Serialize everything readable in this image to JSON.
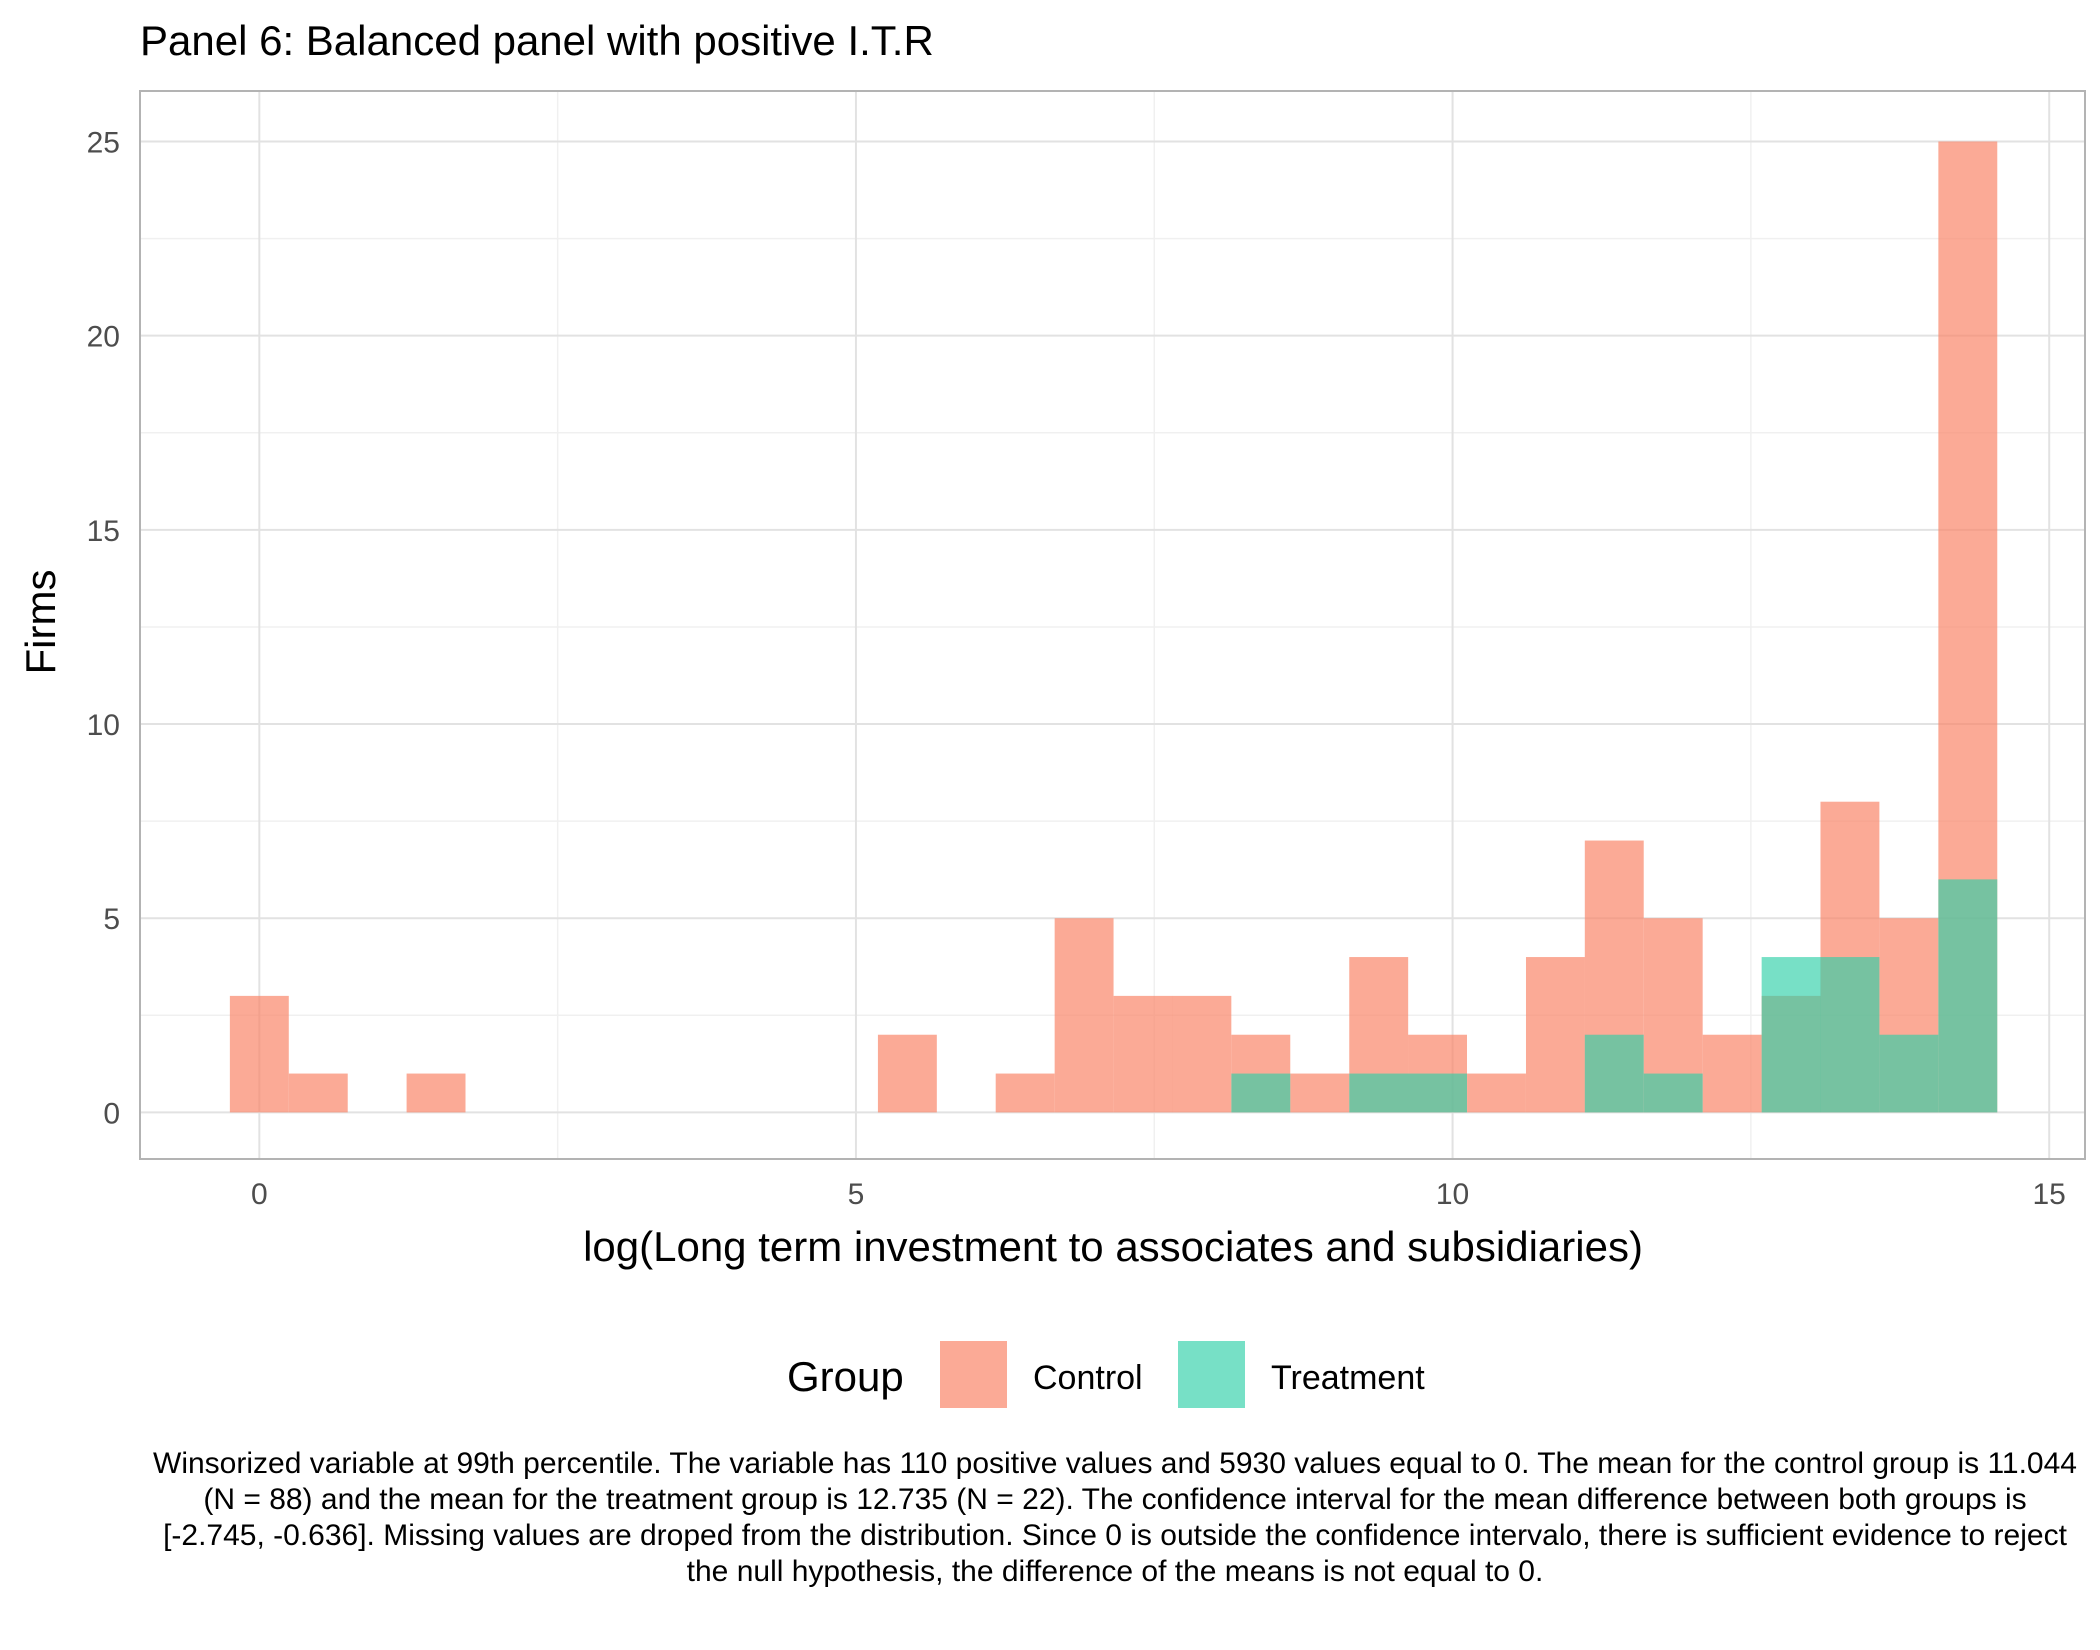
{
  "chart_data": {
    "type": "bar",
    "title": "Panel 6: Balanced panel with positive I.T.R",
    "xlabel": "log(Long term investment to associates and subsidiaries)",
    "ylabel": "Firms",
    "xlim": [
      -1,
      15.3
    ],
    "ylim": [
      -1.2,
      26.3
    ],
    "x_ticks": [
      0,
      5,
      10,
      15
    ],
    "x_tick_labels": [
      "0",
      "5",
      "10",
      "15"
    ],
    "y_ticks": [
      0,
      5,
      10,
      15,
      20,
      25
    ],
    "y_tick_labels": [
      "0",
      "5",
      "10",
      "15",
      "20",
      "25"
    ],
    "grid": true,
    "legend": {
      "title": "Group",
      "position": "bottom"
    },
    "bin_width": 0.4937,
    "bin_centers": [
      0.0,
      0.494,
      0.987,
      1.481,
      1.975,
      2.469,
      2.962,
      3.456,
      3.95,
      4.443,
      4.937,
      5.431,
      5.925,
      6.418,
      6.912,
      7.406,
      7.899,
      8.393,
      8.887,
      9.381,
      9.874,
      10.368,
      10.862,
      11.355,
      11.849,
      12.343,
      12.837,
      13.33,
      13.824,
      14.318
    ],
    "series": [
      {
        "name": "Control",
        "color": "#FA8669",
        "values": [
          3,
          1,
          0,
          1,
          0,
          0,
          0,
          0,
          0,
          0,
          0,
          2,
          0,
          1,
          5,
          3,
          3,
          2,
          1,
          4,
          2,
          1,
          4,
          7,
          5,
          2,
          3,
          8,
          5,
          25
        ]
      },
      {
        "name": "Treatment",
        "color": "#2ECFA8",
        "values": [
          0,
          0,
          0,
          0,
          0,
          0,
          0,
          0,
          0,
          0,
          0,
          0,
          0,
          0,
          0,
          0,
          0,
          1,
          0,
          1,
          1,
          0,
          0,
          2,
          1,
          0,
          4,
          4,
          2,
          6
        ]
      }
    ]
  },
  "caption": "Winsorized variable at 99th percentile. The variable has 110 positive values and 5930 values equal to 0. The mean for the control group is 11.044 (N = 88) and the mean for the treatment group is 12.735 (N = 22). The confidence interval for the mean difference between both groups is [-2.745, -0.636]. Missing values are droped from the distribution. Since 0 is outside the confidence intervalo, there is sufficient evidence to reject the null hypothesis, the difference of the means is not equal to 0."
}
